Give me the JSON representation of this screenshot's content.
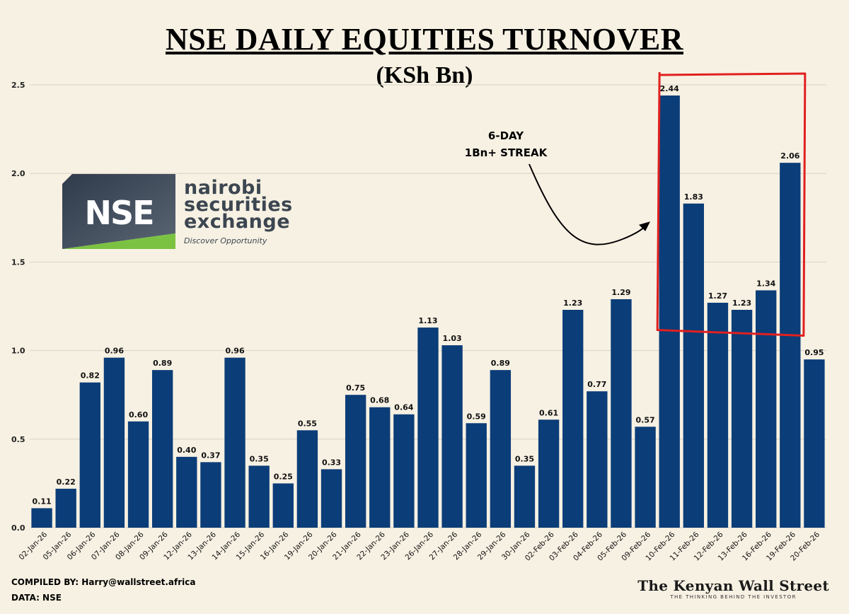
{
  "header": {
    "title": "NSE DAILY EQUITIES TURNOVER ",
    "subtitle": "(KSh Bn)"
  },
  "logo": {
    "mark": "NSE",
    "line1": "nairobi",
    "line2": "securities",
    "line3": "exchange",
    "tagline": "Discover Opportunity"
  },
  "annotation": {
    "line1": "6-DAY",
    "line2": "1Bn+ STREAK"
  },
  "footer": {
    "compiled": "COMPILED BY: Harry@wallstreet.africa",
    "data_source": "DATA: NSE",
    "brand": "The Kenyan Wall Street",
    "brand_tag": "THE THINKING BEHIND THE INVESTOR"
  },
  "colors": {
    "bar": "#0b3d78",
    "highlight_box": "#e02020",
    "background": "#f7f1e3",
    "grid": "#d8d2c4"
  },
  "chart_data": {
    "type": "bar",
    "title": "NSE DAILY EQUITIES TURNOVER",
    "ylabel": "KSh Bn",
    "xlabel": "",
    "ylim": [
      0,
      2.5
    ],
    "yticks": [
      "0.0",
      "0.5",
      "1.0",
      "1.5",
      "2.0",
      "2.5"
    ],
    "grid": true,
    "categories": [
      "02-Jan-26",
      "05-Jan-26",
      "06-Jan-26",
      "07-Jan-26",
      "08-Jan-26",
      "09-Jan-26",
      "12-Jan-26",
      "13-Jan-26",
      "14-Jan-26",
      "15-Jan-26",
      "16-Jan-26",
      "19-Jan-26",
      "20-Jan-26",
      "21-Jan-26",
      "22-Jan-26",
      "23-Jan-26",
      "26-Jan-26",
      "27-Jan-26",
      "28-Jan-26",
      "29-Jan-26",
      "30-Jan-26",
      "02-Feb-26",
      "03-Feb-26",
      "04-Feb-26",
      "05-Feb-26",
      "09-Feb-26",
      "10-Feb-26",
      "11-Feb-26",
      "12-Feb-26",
      "13-Feb-26",
      "16-Feb-26",
      "19-Feb-26",
      "20-Feb-26"
    ],
    "values": [
      0.11,
      0.22,
      0.82,
      0.96,
      0.6,
      0.89,
      0.4,
      0.37,
      0.96,
      0.35,
      0.25,
      0.55,
      0.33,
      0.75,
      0.68,
      0.64,
      1.13,
      1.03,
      0.59,
      0.89,
      0.35,
      0.61,
      1.23,
      0.77,
      1.29,
      0.57,
      2.44,
      1.83,
      1.27,
      1.23,
      1.34,
      2.06,
      0.95
    ],
    "labels": [
      "0.11",
      "0.22",
      "0.82",
      "0.96",
      "0.60",
      "0.89",
      "0.40",
      "0.37",
      "0.96",
      "0.35",
      "0.25",
      "0.55",
      "0.33",
      "0.75",
      "0.68",
      "0.64",
      "1.13",
      "1.03",
      "0.59",
      "0.89",
      "0.35",
      "0.61",
      "1.23",
      "0.77",
      "1.29",
      "0.57",
      "2.44",
      "1.83",
      "1.27",
      "1.23",
      "1.34",
      "2.06",
      "0.95"
    ],
    "highlight_range": [
      "10-Feb-26",
      "19-Feb-26"
    ]
  }
}
